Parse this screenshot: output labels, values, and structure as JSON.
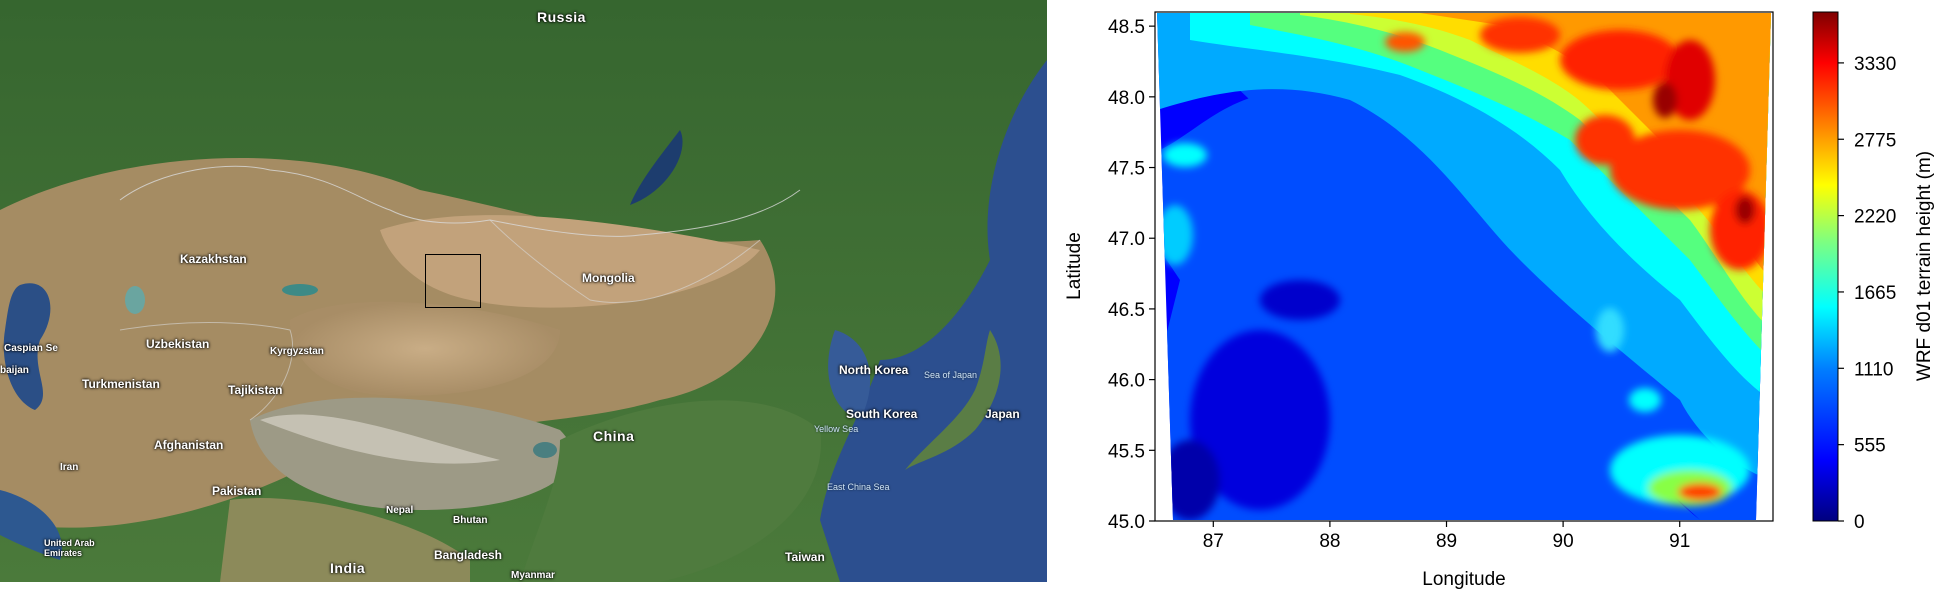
{
  "map_labels": {
    "russia": "Russia",
    "kazakhstan": "Kazakhstan",
    "mongolia": "Mongolia",
    "uzbekistan": "Uzbekistan",
    "kyrgyzstan": "Kyrgyzstan",
    "turkmenistan": "Turkmenistan",
    "tajikistan": "Tajikistan",
    "afghanistan": "Afghanistan",
    "iran": "Iran",
    "pakistan": "Pakistan",
    "nepal": "Nepal",
    "bhutan": "Bhutan",
    "bangladesh": "Bangladesh",
    "india": "India",
    "myanmar": "Myanmar",
    "china": "China",
    "north_korea": "North Korea",
    "south_korea": "South Korea",
    "japan": "Japan",
    "taiwan": "Taiwan",
    "caspian_sea": "Caspian Se",
    "azerbaijan": "baijan",
    "uae": "United Arab\nEmirates",
    "sea_of_japan": "Sea of Japan",
    "yellow_sea": "Yellow Sea",
    "east_china_sea": "East China Sea"
  },
  "chart_data": {
    "type": "heatmap",
    "xlabel": "Longitude",
    "ylabel": "Latitude",
    "colorbar_label": "WRF d01 terrain height (m)",
    "xlim": [
      86.5,
      91.8
    ],
    "ylim": [
      45.0,
      48.6
    ],
    "x_ticks": [
      "87",
      "88",
      "89",
      "90",
      "91"
    ],
    "y_ticks": [
      "45.0",
      "45.5",
      "46.0",
      "46.5",
      "47.0",
      "47.5",
      "48.0",
      "48.5"
    ],
    "colorbar_ticks": [
      "0",
      "555",
      "1110",
      "1665",
      "2220",
      "2775",
      "3330"
    ],
    "colorbar_range": [
      0,
      3700
    ],
    "colormap": [
      "#00007f",
      "#0000ff",
      "#007fff",
      "#00ffff",
      "#7fff7f",
      "#ffff00",
      "#ff7f00",
      "#ff0000",
      "#7f0000"
    ]
  }
}
